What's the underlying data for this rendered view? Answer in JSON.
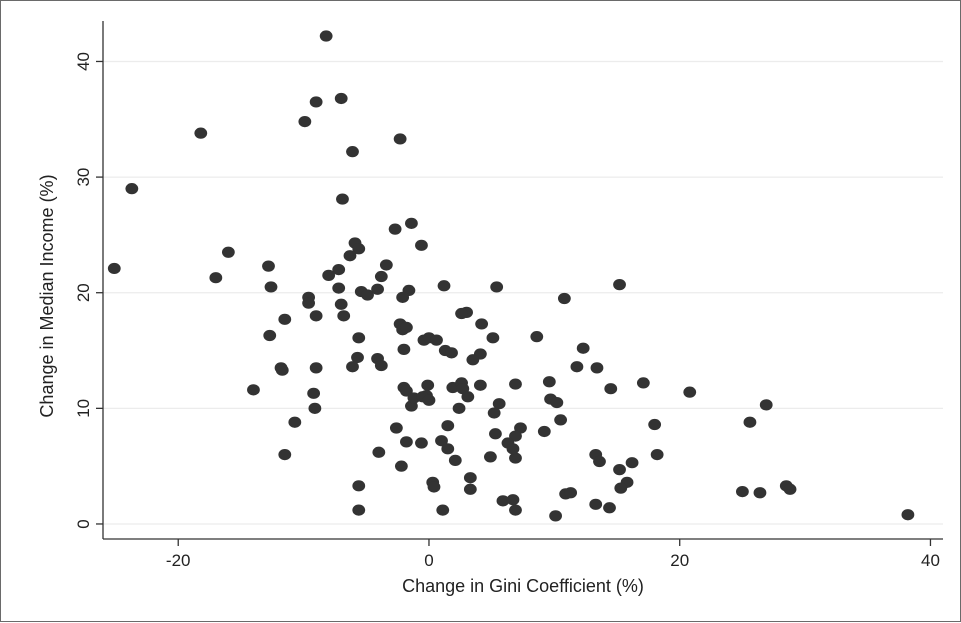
{
  "chart_data": {
    "type": "scatter",
    "title": "",
    "xlabel": "Change in Gini Coefficient (%)",
    "ylabel": "Change in Median Income (%)",
    "xlim": [
      -26,
      41
    ],
    "ylim": [
      -1.3,
      43.5
    ],
    "xticks": [
      -20,
      0,
      20,
      40
    ],
    "yticks": [
      0,
      10,
      20,
      30,
      40
    ],
    "xtick_labels": [
      "-20",
      "0",
      "20",
      "40"
    ],
    "ytick_labels": [
      "0",
      "10",
      "20",
      "30",
      "40"
    ],
    "grid": "horizontal",
    "colors": {
      "points": "#333333",
      "grid": "#ececec",
      "axis": "#333333",
      "background": "#ffffff"
    },
    "points": [
      [
        -8.2,
        42.2
      ],
      [
        -7.0,
        36.8
      ],
      [
        -9.0,
        36.5
      ],
      [
        -9.9,
        34.8
      ],
      [
        -18.2,
        33.8
      ],
      [
        -2.3,
        33.3
      ],
      [
        -6.1,
        32.2
      ],
      [
        -23.7,
        29.0
      ],
      [
        -6.9,
        28.1
      ],
      [
        -1.4,
        26.0
      ],
      [
        -2.7,
        25.5
      ],
      [
        -5.9,
        24.3
      ],
      [
        -5.6,
        23.8
      ],
      [
        -6.3,
        23.2
      ],
      [
        -0.6,
        24.1
      ],
      [
        -16.0,
        23.5
      ],
      [
        -25.1,
        22.1
      ],
      [
        -12.8,
        22.3
      ],
      [
        -7.2,
        22.0
      ],
      [
        -8.0,
        21.5
      ],
      [
        -3.4,
        22.4
      ],
      [
        -17.0,
        21.3
      ],
      [
        -3.8,
        21.4
      ],
      [
        -12.6,
        20.5
      ],
      [
        -7.2,
        20.4
      ],
      [
        -5.4,
        20.1
      ],
      [
        -4.9,
        19.8
      ],
      [
        -4.1,
        20.3
      ],
      [
        -1.6,
        20.2
      ],
      [
        -2.1,
        19.6
      ],
      [
        1.2,
        20.6
      ],
      [
        5.4,
        20.5
      ],
      [
        10.8,
        19.5
      ],
      [
        15.2,
        20.7
      ],
      [
        -9.6,
        19.6
      ],
      [
        -9.6,
        19.1
      ],
      [
        -7.0,
        19.0
      ],
      [
        -9.0,
        18.0
      ],
      [
        -6.8,
        18.0
      ],
      [
        -11.5,
        17.7
      ],
      [
        3.0,
        18.3
      ],
      [
        2.6,
        18.2
      ],
      [
        -2.3,
        17.3
      ],
      [
        -2.1,
        16.8
      ],
      [
        -1.8,
        17.0
      ],
      [
        4.2,
        17.3
      ],
      [
        -12.7,
        16.3
      ],
      [
        -5.6,
        16.1
      ],
      [
        -0.4,
        15.9
      ],
      [
        0.0,
        16.1
      ],
      [
        0.6,
        15.9
      ],
      [
        5.1,
        16.1
      ],
      [
        8.6,
        16.2
      ],
      [
        -2.0,
        15.1
      ],
      [
        1.3,
        15.0
      ],
      [
        1.8,
        14.8
      ],
      [
        4.1,
        14.7
      ],
      [
        -11.8,
        13.5
      ],
      [
        -11.7,
        13.3
      ],
      [
        -9.0,
        13.5
      ],
      [
        -5.7,
        14.4
      ],
      [
        -6.1,
        13.6
      ],
      [
        -4.1,
        14.3
      ],
      [
        -3.8,
        13.7
      ],
      [
        3.5,
        14.2
      ],
      [
        12.3,
        15.2
      ],
      [
        11.8,
        13.6
      ],
      [
        13.4,
        13.5
      ],
      [
        -14.0,
        11.6
      ],
      [
        -9.2,
        11.3
      ],
      [
        -2.0,
        11.8
      ],
      [
        -1.8,
        11.5
      ],
      [
        -0.2,
        11.1
      ],
      [
        -0.1,
        12.0
      ],
      [
        1.9,
        11.8
      ],
      [
        2.6,
        12.2
      ],
      [
        2.7,
        11.7
      ],
      [
        3.1,
        11.0
      ],
      [
        4.1,
        12.0
      ],
      [
        6.9,
        12.1
      ],
      [
        9.6,
        12.3
      ],
      [
        14.5,
        11.7
      ],
      [
        17.1,
        12.2
      ],
      [
        20.8,
        11.4
      ],
      [
        -9.1,
        10.0
      ],
      [
        -10.7,
        8.8
      ],
      [
        -1.4,
        10.2
      ],
      [
        -1.2,
        10.9
      ],
      [
        -0.5,
        11.0
      ],
      [
        0.0,
        10.7
      ],
      [
        2.4,
        10.0
      ],
      [
        5.2,
        9.6
      ],
      [
        5.6,
        10.4
      ],
      [
        9.7,
        10.8
      ],
      [
        10.2,
        10.5
      ],
      [
        10.5,
        9.0
      ],
      [
        26.9,
        10.3
      ],
      [
        25.6,
        8.8
      ],
      [
        18.0,
        8.6
      ],
      [
        -2.6,
        8.3
      ],
      [
        1.5,
        8.5
      ],
      [
        5.3,
        7.8
      ],
      [
        7.3,
        8.3
      ],
      [
        6.9,
        7.6
      ],
      [
        9.2,
        8.0
      ],
      [
        -11.5,
        6.0
      ],
      [
        -1.8,
        7.1
      ],
      [
        -0.6,
        7.0
      ],
      [
        1.0,
        7.2
      ],
      [
        1.5,
        6.5
      ],
      [
        2.1,
        5.5
      ],
      [
        4.9,
        5.8
      ],
      [
        6.3,
        7.0
      ],
      [
        6.9,
        5.7
      ],
      [
        6.7,
        6.5
      ],
      [
        13.3,
        6.0
      ],
      [
        13.6,
        5.4
      ],
      [
        16.2,
        5.3
      ],
      [
        18.2,
        6.0
      ],
      [
        -2.2,
        5.0
      ],
      [
        -4.0,
        6.2
      ],
      [
        15.2,
        4.7
      ],
      [
        15.8,
        3.6
      ],
      [
        15.3,
        3.1
      ],
      [
        3.3,
        4.0
      ],
      [
        3.3,
        3.0
      ],
      [
        0.3,
        3.6
      ],
      [
        0.4,
        3.2
      ],
      [
        -5.6,
        3.3
      ],
      [
        5.9,
        2.0
      ],
      [
        6.7,
        2.1
      ],
      [
        10.9,
        2.6
      ],
      [
        11.3,
        2.7
      ],
      [
        13.3,
        1.7
      ],
      [
        14.4,
        1.4
      ],
      [
        25.0,
        2.8
      ],
      [
        26.4,
        2.7
      ],
      [
        28.5,
        3.3
      ],
      [
        28.8,
        3.0
      ],
      [
        -5.6,
        1.2
      ],
      [
        1.1,
        1.2
      ],
      [
        6.9,
        1.2
      ],
      [
        10.1,
        0.7
      ],
      [
        38.2,
        0.8
      ]
    ]
  }
}
